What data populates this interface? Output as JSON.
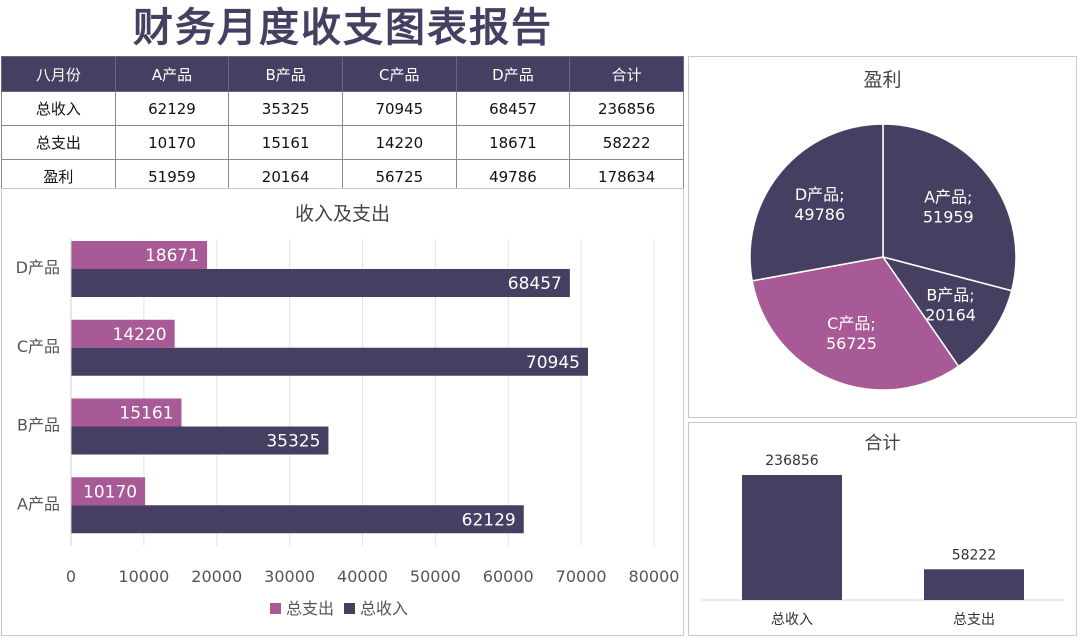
{
  "title": "财务月度收支图表报告",
  "table": {
    "headers": [
      "八月份",
      "A产品",
      "B产品",
      "C产品",
      "D产品",
      "合计"
    ],
    "rows": [
      [
        "总收入",
        "62129",
        "35325",
        "70945",
        "68457",
        "236856"
      ],
      [
        "总支出",
        "10170",
        "15161",
        "14220",
        "18671",
        "58222"
      ],
      [
        "盈利",
        "51959",
        "20164",
        "56725",
        "49786",
        "178634"
      ]
    ]
  },
  "colors": {
    "income": "#473F62",
    "expense": "#A85A97",
    "pie_c": "#A85A97"
  },
  "chart_data": [
    {
      "type": "bar",
      "orientation": "horizontal",
      "title": "收入及支出",
      "categories": [
        "A产品",
        "B产品",
        "C产品",
        "D产品"
      ],
      "series": [
        {
          "name": "总支出",
          "values": [
            10170,
            15161,
            14220,
            18671
          ]
        },
        {
          "name": "总收入",
          "values": [
            62129,
            35325,
            70945,
            68457
          ]
        }
      ],
      "xlim": [
        0,
        80000
      ],
      "x_ticks": [
        "0",
        "10000",
        "20000",
        "30000",
        "40000",
        "50000",
        "60000",
        "70000",
        "80000"
      ],
      "grid": true,
      "legend": "bottom"
    },
    {
      "type": "pie",
      "title": "盈利",
      "slices": [
        {
          "label": "A产品",
          "value": 51959
        },
        {
          "label": "B产品",
          "value": 20164
        },
        {
          "label": "C产品",
          "value": 56725
        },
        {
          "label": "D产品",
          "value": 49786
        }
      ]
    },
    {
      "type": "bar",
      "title": "合计",
      "categories": [
        "总收入",
        "总支出"
      ],
      "values": [
        236856,
        58222
      ]
    }
  ]
}
